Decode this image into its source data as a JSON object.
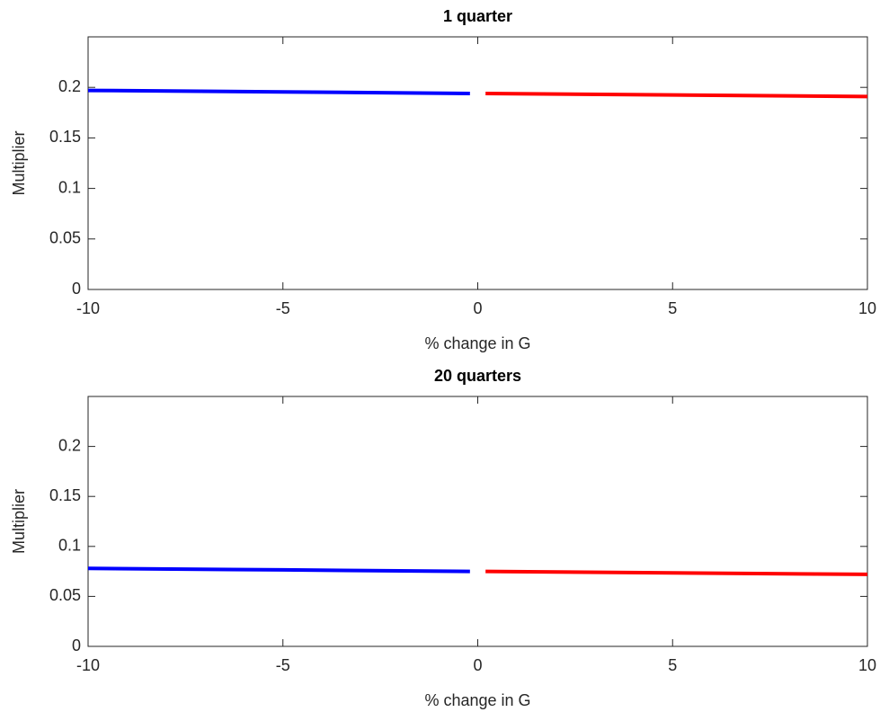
{
  "chart_data": [
    {
      "type": "line",
      "title": "1 quarter",
      "xlabel": "% change in G",
      "ylabel": "Multiplier",
      "xlim": [
        -10,
        10
      ],
      "ylim": [
        0,
        0.25
      ],
      "xticks": [
        -10,
        -5,
        0,
        5,
        10
      ],
      "yticks": [
        0,
        0.05,
        0.1,
        0.15,
        0.2
      ],
      "series": [
        {
          "color": "#0000ff",
          "x": [
            -10,
            -5,
            -0.2
          ],
          "values": [
            0.197,
            0.1955,
            0.194
          ]
        },
        {
          "color": "#ff0000",
          "x": [
            0.2,
            5,
            10
          ],
          "values": [
            0.194,
            0.1925,
            0.191
          ]
        }
      ]
    },
    {
      "type": "line",
      "title": "20 quarters",
      "xlabel": "% change in G",
      "ylabel": "Multiplier",
      "xlim": [
        -10,
        10
      ],
      "ylim": [
        0,
        0.25
      ],
      "xticks": [
        -10,
        -5,
        0,
        5,
        10
      ],
      "yticks": [
        0,
        0.05,
        0.1,
        0.15,
        0.2
      ],
      "series": [
        {
          "color": "#0000ff",
          "x": [
            -10,
            -5,
            -0.2
          ],
          "values": [
            0.078,
            0.0765,
            0.075
          ]
        },
        {
          "color": "#ff0000",
          "x": [
            0.2,
            5,
            10
          ],
          "values": [
            0.075,
            0.0735,
            0.072
          ]
        }
      ]
    }
  ]
}
